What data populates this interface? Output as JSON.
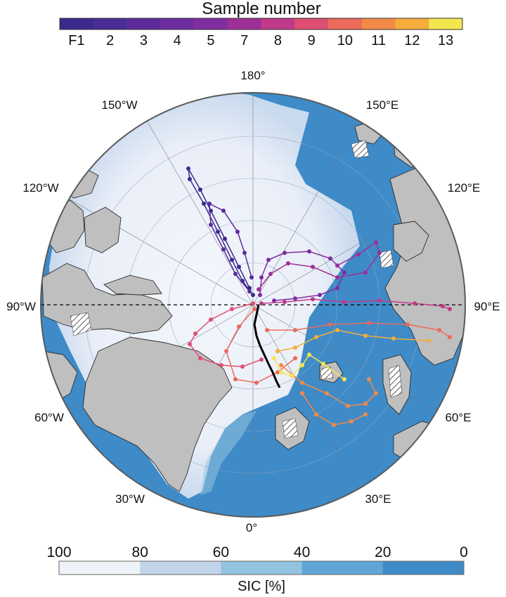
{
  "sample_colorbar": {
    "title": "Sample number",
    "labels": [
      "F1",
      "2",
      "3",
      "4",
      "5",
      "7",
      "8",
      "9",
      "10",
      "11",
      "12",
      "13"
    ],
    "colors": [
      "#3b2a8c",
      "#4b2c96",
      "#5c2c9c",
      "#6e2d9f",
      "#7f2d9f",
      "#9e2f97",
      "#c0398a",
      "#de4e72",
      "#ec6a5a",
      "#f38a48",
      "#f6ad3c",
      "#f4e64f"
    ]
  },
  "sic_colorbar": {
    "title": "SIC [%]",
    "ticks": [
      "100",
      "80",
      "60",
      "40",
      "20",
      "0"
    ],
    "colors": [
      "#eef2f9",
      "#c2d4ea",
      "#93c4df",
      "#5fa6d6",
      "#3e8bc8"
    ]
  },
  "map": {
    "projection": "north polar stereographic",
    "longitude_labels": {
      "lon_180": "180°",
      "lon_150w": "150°W",
      "lon_150e": "150°E",
      "lon_120w": "120°W",
      "lon_120e": "120°E",
      "lon_90w": "90°W",
      "lon_90e": "90°E",
      "lon_60w": "60°W",
      "lon_60e": "60°E",
      "lon_30w": "30°W",
      "lon_30e": "30°E",
      "lon_0": "0°"
    },
    "colors": {
      "open_ocean": "#3e8bc8",
      "land": "#bfbfbf",
      "coast": "#2b2b2b",
      "ship_track": "#000000"
    }
  }
}
